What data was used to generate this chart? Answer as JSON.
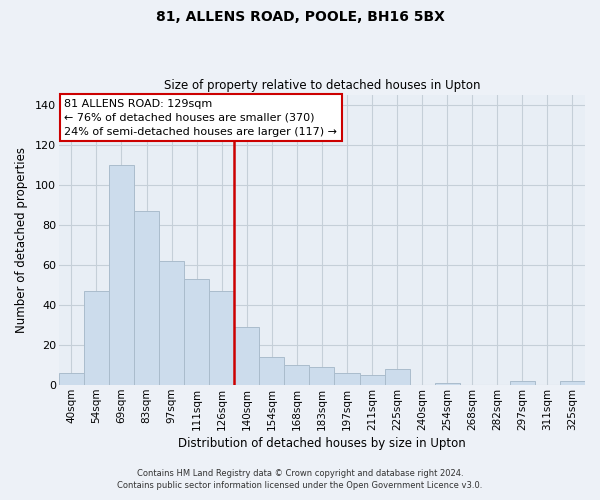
{
  "title": "81, ALLENS ROAD, POOLE, BH16 5BX",
  "subtitle": "Size of property relative to detached houses in Upton",
  "xlabel": "Distribution of detached houses by size in Upton",
  "ylabel": "Number of detached properties",
  "bar_labels": [
    "40sqm",
    "54sqm",
    "69sqm",
    "83sqm",
    "97sqm",
    "111sqm",
    "126sqm",
    "140sqm",
    "154sqm",
    "168sqm",
    "183sqm",
    "197sqm",
    "211sqm",
    "225sqm",
    "240sqm",
    "254sqm",
    "268sqm",
    "282sqm",
    "297sqm",
    "311sqm",
    "325sqm"
  ],
  "bar_values": [
    6,
    47,
    110,
    87,
    62,
    53,
    47,
    29,
    14,
    10,
    9,
    6,
    5,
    8,
    0,
    1,
    0,
    0,
    2,
    0,
    2
  ],
  "bar_color": "#ccdcec",
  "bar_edge_color": "#aabccc",
  "vline_x": 6.5,
  "vline_color": "#cc0000",
  "annotation_title": "81 ALLENS ROAD: 129sqm",
  "annotation_line1": "← 76% of detached houses are smaller (370)",
  "annotation_line2": "24% of semi-detached houses are larger (117) →",
  "annotation_box_color": "#ffffff",
  "annotation_box_edge_color": "#cc0000",
  "ylim": [
    0,
    145
  ],
  "yticks": [
    0,
    20,
    40,
    60,
    80,
    100,
    120,
    140
  ],
  "footer1": "Contains HM Land Registry data © Crown copyright and database right 2024.",
  "footer2": "Contains public sector information licensed under the Open Government Licence v3.0.",
  "background_color": "#edf1f7",
  "plot_background_color": "#e8eef5",
  "grid_color": "#c5cfd8"
}
